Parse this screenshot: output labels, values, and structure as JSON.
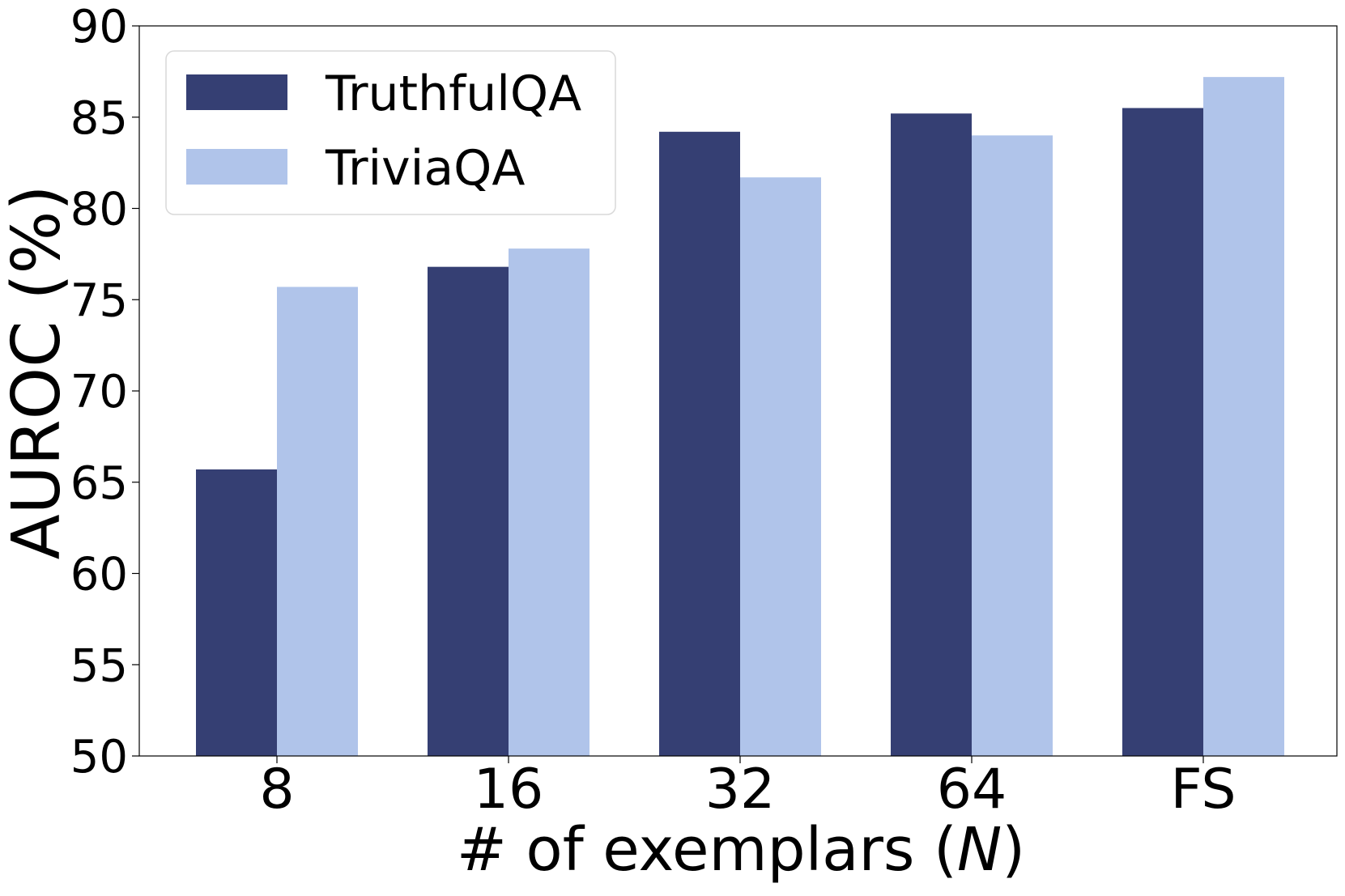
{
  "chart_data": {
    "type": "bar",
    "title": "",
    "xlabel": "# of exemplars (N)",
    "xlabel_parts": {
      "prefix": "# of exemplars (",
      "italic": "N",
      "suffix": ")"
    },
    "ylabel": "AUROC (%)",
    "ylim": [
      50,
      90
    ],
    "yticks": [
      50,
      55,
      60,
      65,
      70,
      75,
      80,
      85,
      90
    ],
    "categories": [
      "8",
      "16",
      "32",
      "64",
      "FS"
    ],
    "series": [
      {
        "name": "TruthfulQA",
        "color": "#353f73",
        "values": [
          65.7,
          76.8,
          84.2,
          85.2,
          85.5
        ]
      },
      {
        "name": "TriviaQA",
        "color": "#b0c4ea",
        "values": [
          75.7,
          77.8,
          81.7,
          84.0,
          87.2
        ]
      }
    ],
    "legend": {
      "position": "top-left"
    },
    "grid": false
  }
}
